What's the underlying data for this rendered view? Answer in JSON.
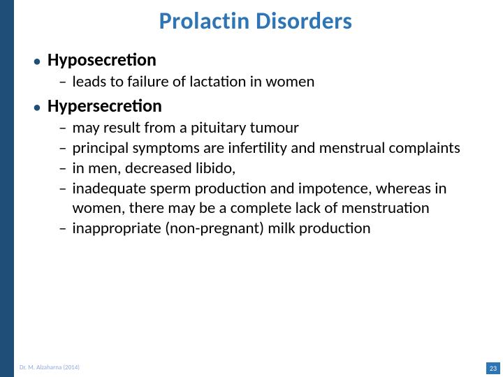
{
  "colors": {
    "leftbar": "#1f4e79",
    "title": "#2e75b6",
    "bullet": "#1f4e79",
    "body_text": "#000000",
    "footer": "#8faadc",
    "pagenum_bg": "#2e75b6",
    "pagenum_fg": "#ffffff",
    "background": "#ffffff"
  },
  "typography": {
    "title_size": 34,
    "l1_size": 26,
    "l2_size": 23,
    "footer_size": 9,
    "pagenum_size": 10,
    "family": "Calibri"
  },
  "title": "Prolactin Disorders",
  "sections": [
    {
      "heading": "Hyposecretion",
      "items": [
        "leads to failure of lactation in women"
      ]
    },
    {
      "heading": "Hypersecretion",
      "items": [
        "may result from a pituitary tumour",
        "principal symptoms are infertility and menstrual complaints",
        "in men, decreased libido,",
        "inadequate sperm production and impotence, whereas in women, there may be a complete lack of menstruation",
        "inappropriate (non-pregnant) milk production"
      ]
    }
  ],
  "footer": "Dr. M. Alzaharna (2014)",
  "page_number": "23"
}
